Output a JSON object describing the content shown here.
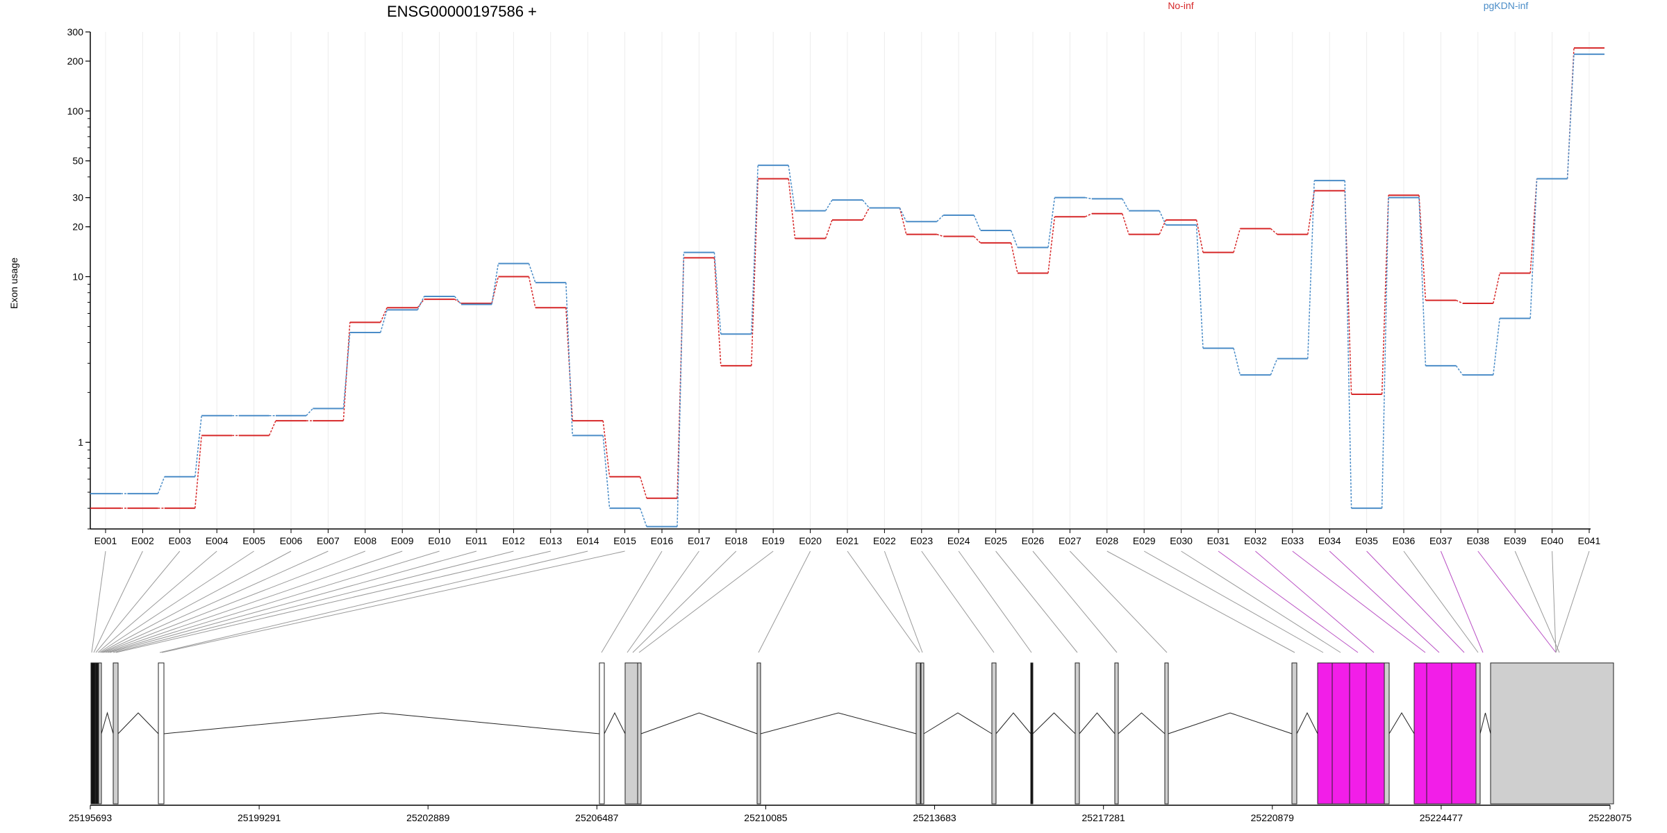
{
  "chart_data": {
    "type": "line",
    "title": "ENSG00000197586 +",
    "ylabel": "Exon usage",
    "xlabel": "",
    "y_scale": "log",
    "ylim": [
      0.3,
      300
    ],
    "y_ticks": [
      1,
      10,
      20,
      30,
      50,
      100,
      200,
      300
    ],
    "grid": true,
    "legend_position": "top",
    "categories": [
      "E001",
      "E002",
      "E003",
      "E004",
      "E005",
      "E006",
      "E007",
      "E008",
      "E009",
      "E010",
      "E011",
      "E012",
      "E013",
      "E014",
      "E015",
      "E016",
      "E017",
      "E018",
      "E019",
      "E020",
      "E021",
      "E022",
      "E023",
      "E024",
      "E025",
      "E026",
      "E027",
      "E028",
      "E029",
      "E030",
      "E031",
      "E032",
      "E033",
      "E034",
      "E035",
      "E036",
      "E037",
      "E038",
      "E039",
      "E040",
      "E041"
    ],
    "series": [
      {
        "name": "No-inf",
        "color": "#d62728",
        "values": [
          0.4,
          0.4,
          0.4,
          1.1,
          1.1,
          1.35,
          1.35,
          5.3,
          6.5,
          7.3,
          6.9,
          10.0,
          6.5,
          1.35,
          0.62,
          0.46,
          13.0,
          2.9,
          39,
          17,
          22,
          26,
          18,
          17.5,
          16,
          10.5,
          23,
          24,
          18,
          22,
          14,
          19.5,
          18,
          33,
          1.95,
          31,
          7.2,
          6.9,
          10.5,
          39,
          240
        ]
      },
      {
        "name": "pgKDN-inf",
        "color": "#4a8cc7",
        "values": [
          0.49,
          0.49,
          0.62,
          1.45,
          1.45,
          1.45,
          1.6,
          4.6,
          6.3,
          7.6,
          6.8,
          12.0,
          9.2,
          1.1,
          0.4,
          0.31,
          14.0,
          4.5,
          47,
          25,
          29,
          26,
          21.5,
          23.5,
          19,
          15,
          30,
          29.5,
          25,
          20.5,
          3.7,
          2.55,
          3.2,
          38,
          0.4,
          30,
          2.9,
          2.55,
          5.6,
          39,
          220
        ]
      }
    ],
    "gene_model": {
      "coordinates": [
        25195693,
        25199291,
        25202889,
        25206487,
        25210085,
        25213683,
        25217281,
        25220879,
        25224477,
        25228075
      ],
      "highlighted_exons": [
        "E031",
        "E032",
        "E033",
        "E034",
        "E035",
        "E037",
        "E038"
      ],
      "highlight_color": "#f21ee8",
      "exon_color": "#cfcfcf"
    }
  }
}
